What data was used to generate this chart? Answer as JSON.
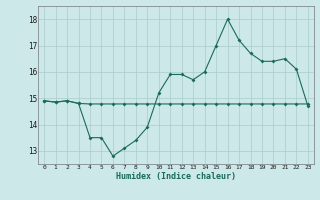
{
  "line1_x": [
    0,
    1,
    2,
    3,
    4,
    5,
    6,
    7,
    8,
    9,
    10,
    11,
    12,
    13,
    14,
    15,
    16,
    17,
    18,
    19,
    20,
    21,
    22,
    23
  ],
  "line1_y": [
    14.9,
    14.85,
    14.9,
    14.8,
    14.78,
    14.78,
    14.78,
    14.78,
    14.78,
    14.78,
    14.78,
    14.78,
    14.78,
    14.78,
    14.78,
    14.78,
    14.78,
    14.78,
    14.78,
    14.78,
    14.78,
    14.78,
    14.78,
    14.78
  ],
  "line2_x": [
    0,
    1,
    2,
    3,
    4,
    5,
    6,
    7,
    8,
    9,
    10,
    11,
    12,
    13,
    14,
    15,
    16,
    17,
    18,
    19,
    20,
    21,
    22,
    23
  ],
  "line2_y": [
    14.9,
    14.85,
    14.9,
    14.8,
    13.5,
    13.5,
    12.8,
    13.1,
    13.4,
    13.9,
    15.2,
    15.9,
    15.9,
    15.7,
    16.0,
    17.0,
    18.0,
    17.2,
    16.7,
    16.4,
    16.4,
    16.5,
    16.1,
    14.7
  ],
  "bg_color": "#cce8e8",
  "grid_color": "#aacccc",
  "line_color": "#1a6b5a",
  "ylabel_vals": [
    13,
    14,
    15,
    16,
    17,
    18
  ],
  "xlabel": "Humidex (Indice chaleur)",
  "xlim": [
    -0.5,
    23.5
  ],
  "ylim": [
    12.5,
    18.5
  ]
}
